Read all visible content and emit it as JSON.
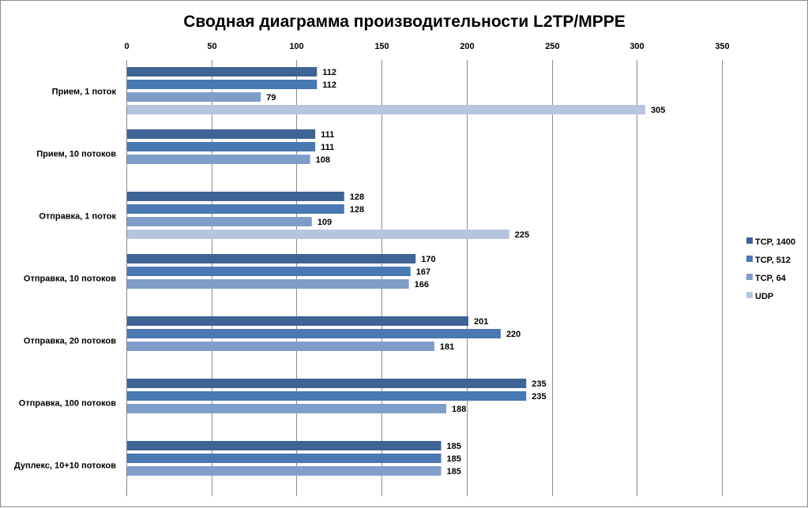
{
  "chart_data": {
    "type": "bar",
    "orientation": "horizontal",
    "title": "Сводная диаграмма производительности L2TP/MPPE",
    "xlim": [
      0,
      350
    ],
    "ticks": [
      0,
      50,
      100,
      150,
      200,
      250,
      300,
      350
    ],
    "x_axis_position": "top",
    "grid": true,
    "legend_position": "right",
    "categories": [
      "Прием,  1 поток",
      "Прием,  10 потоков",
      "Отправка,  1 поток",
      "Отправка,  10 потоков",
      "Отправка,  20 потоков",
      "Отправка,  100 потоков",
      "Дуплекс,  10+10 потоков"
    ],
    "series": [
      {
        "name": "TCP, 1400",
        "color": "#3d6494",
        "values": [
          112,
          111,
          128,
          170,
          201,
          235,
          185
        ]
      },
      {
        "name": "TCP, 512",
        "color": "#4a78b2",
        "values": [
          112,
          111,
          128,
          167,
          220,
          235,
          185
        ]
      },
      {
        "name": "TCP, 64",
        "color": "#7f9dc9",
        "values": [
          79,
          108,
          109,
          166,
          181,
          188,
          185
        ]
      },
      {
        "name": "UDP",
        "color": "#b6c5df",
        "values": [
          305,
          null,
          225,
          null,
          null,
          null,
          null
        ]
      }
    ]
  }
}
